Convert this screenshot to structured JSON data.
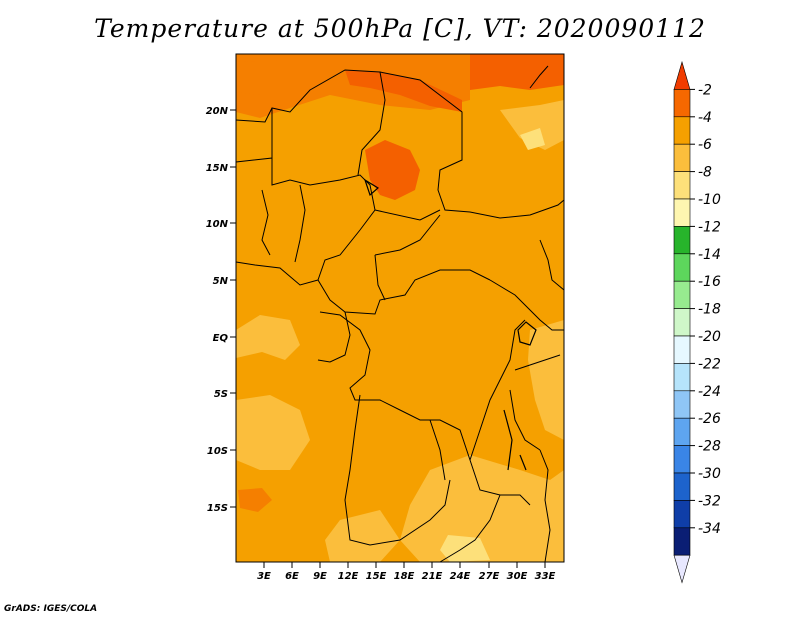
{
  "title": "Temperature at 500hPa [C], VT: 2020090112",
  "credit": "GrADS: IGES/COLA",
  "map": {
    "lat_ticks": [
      "20N",
      "15N",
      "10N",
      "5N",
      "EQ",
      "5S",
      "10S",
      "15S"
    ],
    "lon_ticks": [
      "3E",
      "6E",
      "9E",
      "12E",
      "15E",
      "18E",
      "21E",
      "24E",
      "27E",
      "30E",
      "33E"
    ],
    "fill_colors": {
      "dominant": "#f5a000",
      "warm": "#f46000",
      "warmer": "#f57f00",
      "cool": "#fbbe3c",
      "cooler": "#fde07a"
    }
  },
  "colorbar": {
    "labels": [
      "-2",
      "-4",
      "-6",
      "-8",
      "-10",
      "-12",
      "-14",
      "-16",
      "-18",
      "-20",
      "-22",
      "-24",
      "-26",
      "-28",
      "-30",
      "-32",
      "-34"
    ],
    "colors": [
      "#f03c00",
      "#f66800",
      "#f5a000",
      "#fbbe3c",
      "#fde07a",
      "#fef6b0",
      "#27b42b",
      "#5dd65c",
      "#97eb8f",
      "#cff7c9",
      "#e6f8ff",
      "#b6e4fb",
      "#8fc6f6",
      "#5ea5f0",
      "#3a85e6",
      "#1d63cc",
      "#0f3ea8",
      "#0a1e74",
      "#e8e8ff"
    ]
  }
}
